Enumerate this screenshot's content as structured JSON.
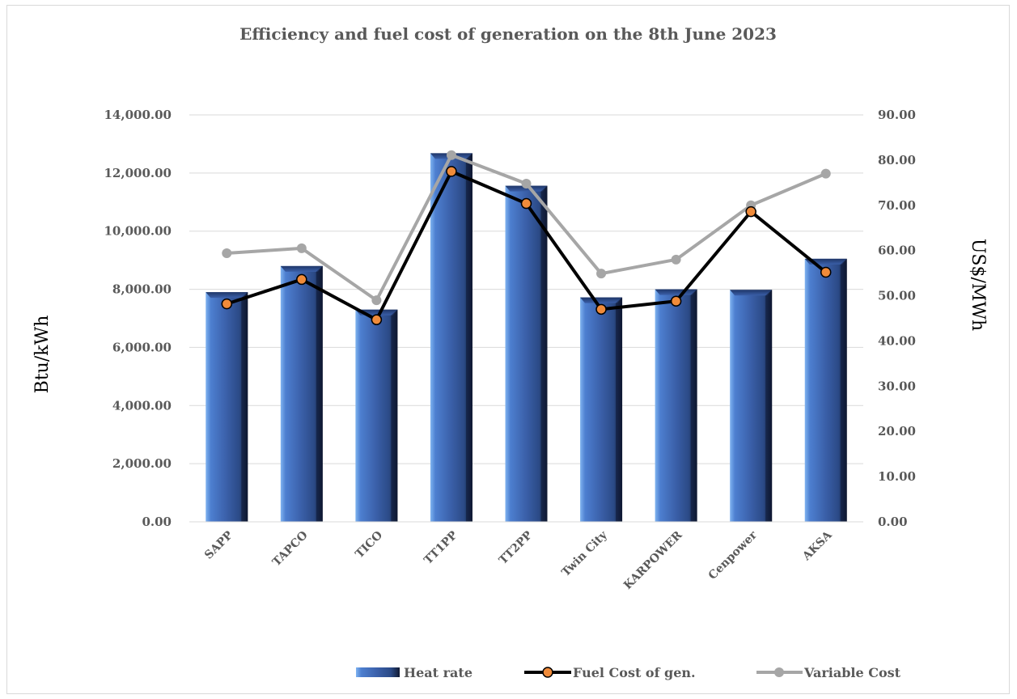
{
  "chart_data": {
    "type": "bar",
    "title": "Efficiency and fuel cost of generation on the 8th June 2023",
    "categories": [
      "SAPP",
      "TAPCO",
      "TICO",
      "TT1PP",
      "TT2PP",
      "Twin City",
      "KARPOWER",
      "Cenpower",
      "AKSA"
    ],
    "y_left": {
      "label": "Btu/kWh",
      "range": [
        0,
        14000
      ],
      "ticks": [
        "0.00",
        "2,000.00",
        "4,000.00",
        "6,000.00",
        "8,000.00",
        "10,000.00",
        "12,000.00",
        "14,000.00"
      ]
    },
    "y_right": {
      "label": "US$/MWh",
      "range": [
        0,
        90
      ],
      "ticks": [
        "0.00",
        "10.00",
        "20.00",
        "30.00",
        "40.00",
        "50.00",
        "60.00",
        "70.00",
        "80.00",
        "90.00"
      ]
    },
    "series": [
      {
        "name": "Heat rate",
        "type": "bar",
        "axis": "left",
        "color": "#3a5fa8",
        "values": [
          7900,
          8800,
          7300,
          12680,
          11560,
          7720,
          8000,
          7980,
          9050
        ]
      },
      {
        "name": "Fuel Cost of gen.",
        "type": "line",
        "axis": "right",
        "color": "#000000",
        "marker_color": "#f08b3a",
        "values": [
          48.2,
          53.6,
          44.7,
          77.5,
          70.4,
          47.0,
          48.8,
          68.6,
          55.2
        ]
      },
      {
        "name": "Variable Cost",
        "type": "line",
        "axis": "right",
        "color": "#a6a6a6",
        "marker_color": "#a6a6a6",
        "values": [
          59.4,
          60.5,
          49.0,
          81.1,
          74.8,
          54.9,
          58.0,
          70.0,
          77.0
        ]
      }
    ],
    "grid": true,
    "legend": "bottom-right"
  }
}
